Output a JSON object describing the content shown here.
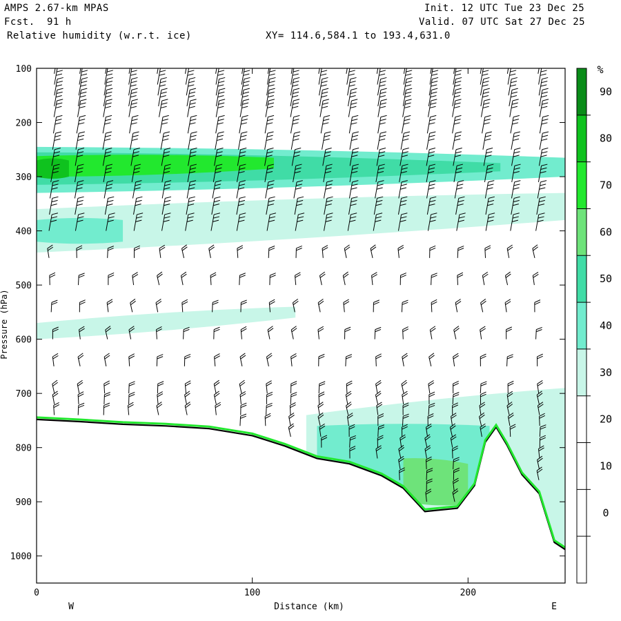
{
  "header": {
    "model": "AMPS 2.67-km MPAS",
    "fcst_label": "Fcst.",
    "fcst_value": "91 h",
    "field": "Relative humidity (w.r.t. ice)",
    "xy": "XY= 114.6,584.1 to 193.4,631.0",
    "init": "Init. 12 UTC Tue 23 Dec 25",
    "valid": "Valid. 07 UTC Sat 27 Dec 25"
  },
  "chart_data": {
    "type": "heatmap",
    "title": "Relative humidity (w.r.t. ice)",
    "xlabel": "Distance (km)",
    "ylabel": "Pressure (hPa)",
    "xlim": [
      0,
      245
    ],
    "ylim": [
      1050,
      100
    ],
    "x_ticks": [
      0,
      100,
      200
    ],
    "y_ticks": [
      100,
      200,
      300,
      400,
      500,
      600,
      700,
      800,
      900,
      1000
    ],
    "x_end_labels": {
      "left": "W",
      "right": "E"
    },
    "colorbar": {
      "unit": "%",
      "ticks": [
        0,
        10,
        20,
        30,
        40,
        50,
        60,
        70,
        80,
        90
      ],
      "levels": [
        -10,
        0,
        10,
        20,
        30,
        40,
        50,
        60,
        70,
        80,
        90,
        100
      ],
      "colors": [
        "#ffffff",
        "#ffffff",
        "#ffffff",
        "#ffffff",
        "#c8f6e8",
        "#72ecce",
        "#40dca6",
        "#6ee37a",
        "#22e82e",
        "#0fc21e",
        "#0a8c18"
      ]
    },
    "terrain": [
      [
        0,
        748
      ],
      [
        20,
        752
      ],
      [
        40,
        757
      ],
      [
        60,
        760
      ],
      [
        80,
        765
      ],
      [
        100,
        778
      ],
      [
        115,
        797
      ],
      [
        130,
        820
      ],
      [
        145,
        830
      ],
      [
        160,
        852
      ],
      [
        170,
        875
      ],
      [
        180,
        918
      ],
      [
        195,
        912
      ],
      [
        203,
        870
      ],
      [
        208,
        790
      ],
      [
        213,
        762
      ],
      [
        218,
        795
      ],
      [
        225,
        850
      ],
      [
        233,
        885
      ],
      [
        240,
        975
      ],
      [
        245,
        988
      ]
    ],
    "humidity_bands": [
      {
        "name": "upper layer",
        "rh": 40,
        "x": [
          0,
          245
        ],
        "p_top": [
          245,
          265
        ],
        "p_bottom": [
          330,
          300
        ]
      },
      {
        "name": "upper layer",
        "rh": 50,
        "x": [
          0,
          215
        ],
        "p_top": [
          255,
          275
        ],
        "p_bottom": [
          315,
          290
        ]
      },
      {
        "name": "upper layer core",
        "rh": 70,
        "x": [
          0,
          110
        ],
        "p_top": [
          262,
          265
        ],
        "p_bottom": [
          300,
          285
        ]
      },
      {
        "name": "upper layer peak",
        "rh": 80,
        "x": [
          0,
          15
        ],
        "p_top": [
          270,
          270
        ],
        "p_bottom": [
          300,
          300
        ]
      },
      {
        "name": "mid layer",
        "rh": 30,
        "x": [
          0,
          245
        ],
        "p_top": [
          360,
          330
        ],
        "p_bottom": [
          440,
          380
        ]
      },
      {
        "name": "mid layer",
        "rh": 40,
        "x": [
          0,
          40
        ],
        "p_top": [
          380,
          380
        ],
        "p_bottom": [
          420,
          420
        ]
      },
      {
        "name": "thin layer",
        "rh": 30,
        "x": [
          0,
          120
        ],
        "p_top": [
          570,
          540
        ],
        "p_bottom": [
          600,
          560
        ]
      },
      {
        "name": "boundary layer",
        "rh": 30,
        "x": [
          125,
          245
        ],
        "p_top": [
          740,
          690
        ],
        "p_bottom": [
          900,
          980
        ]
      },
      {
        "name": "boundary layer",
        "rh": 40,
        "x": [
          130,
          210
        ],
        "p_top": [
          760,
          760
        ],
        "p_bottom": [
          880,
          900
        ]
      },
      {
        "name": "boundary layer",
        "rh": 60,
        "x": [
          170,
          200
        ],
        "p_top": [
          820,
          830
        ],
        "p_bottom": [
          900,
          905
        ]
      }
    ],
    "wind_barbs": {
      "x": [
        7,
        19,
        32,
        44,
        57,
        69,
        82,
        94,
        107,
        119,
        132,
        144,
        157,
        169,
        182,
        194,
        207,
        219,
        232
      ],
      "p_levels": [
        110,
        130,
        150,
        170,
        190,
        220,
        250,
        280,
        310,
        340,
        370,
        400,
        450,
        500,
        550,
        600,
        650,
        700,
        720,
        740,
        760,
        780,
        800,
        820,
        840,
        860,
        880,
        900,
        920,
        940,
        960,
        980
      ],
      "note": "wind barbs along vertical columns, from top of domain down to terrain"
    }
  }
}
